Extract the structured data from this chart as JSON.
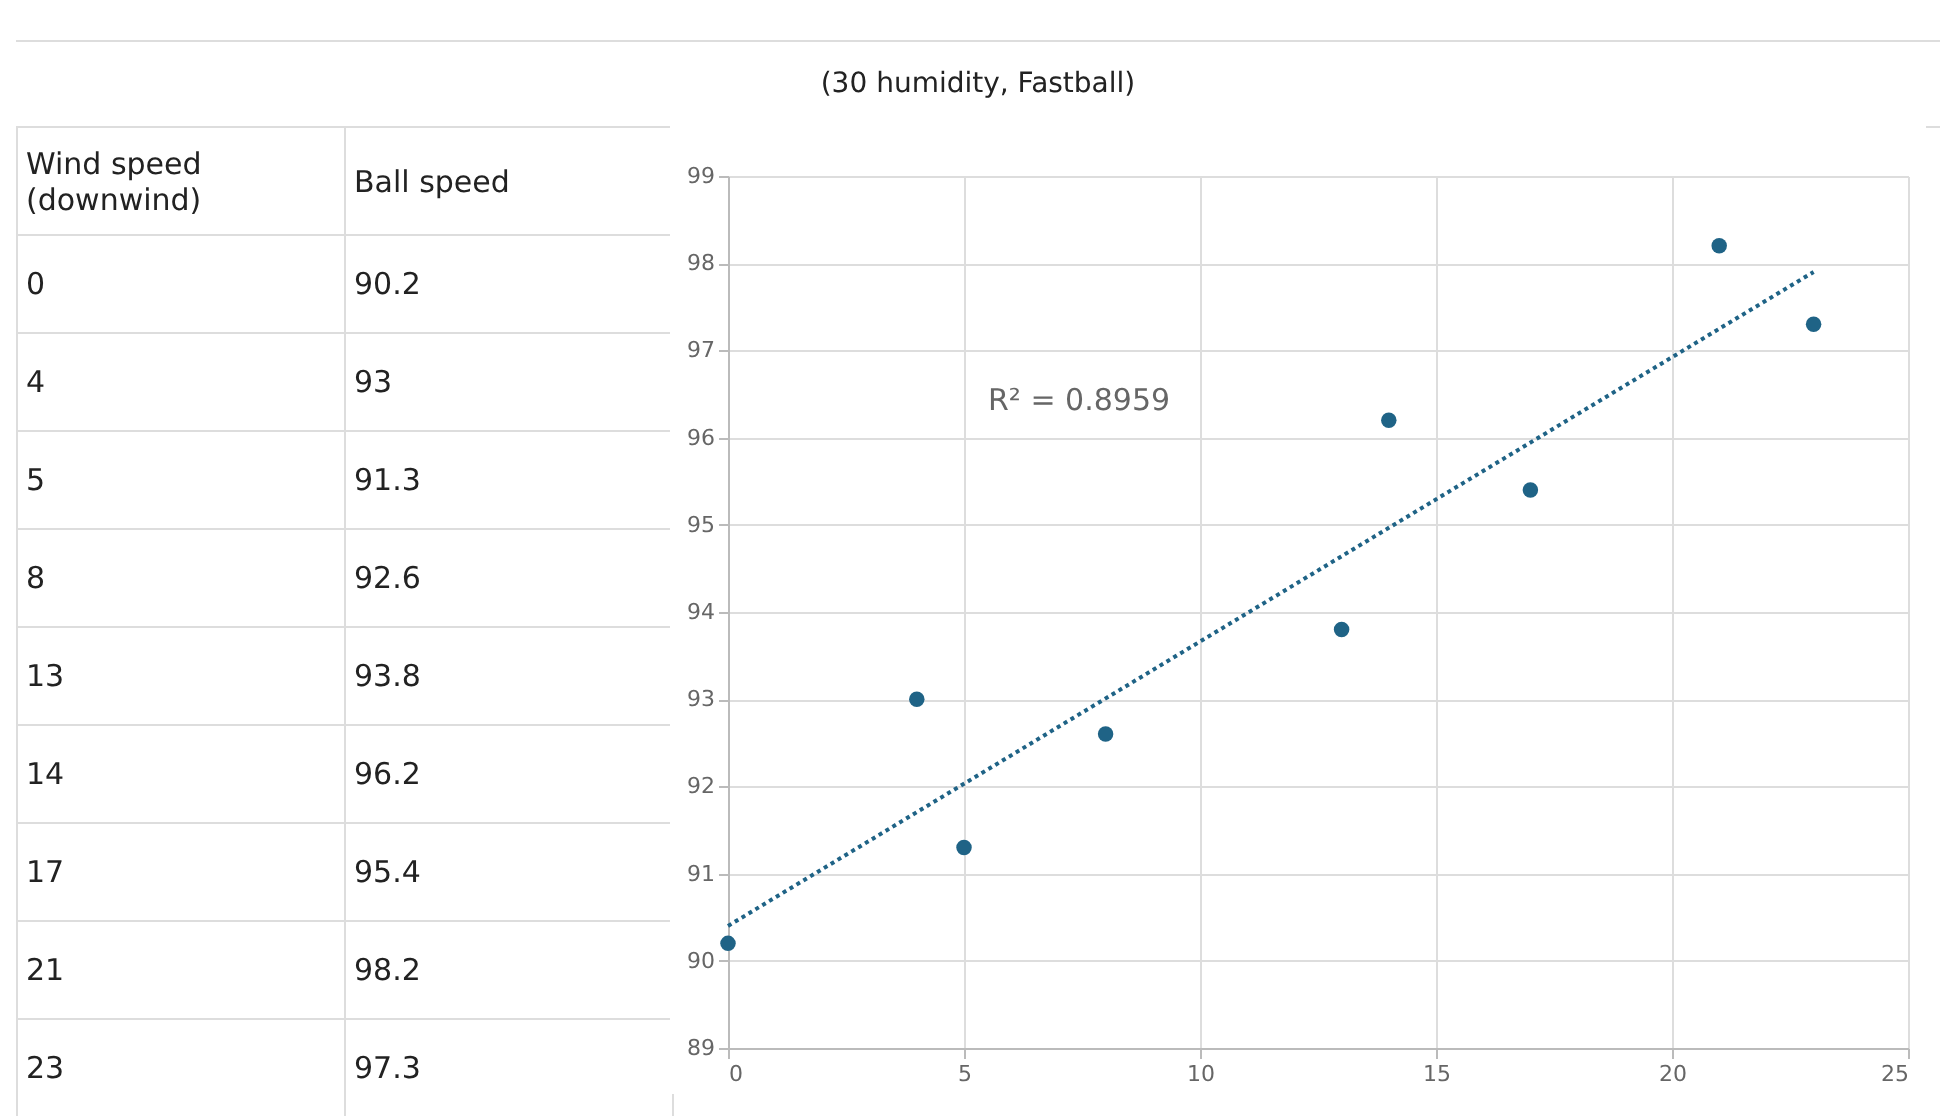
{
  "chart_data": [
    {
      "type": "other",
      "annotations": [
        "Wind speed (downwind)",
        "Ball speed",
        "0",
        "90.2",
        "4",
        "93",
        "5",
        "91.3",
        "8",
        "92.6",
        "13",
        "93.8",
        "14",
        "96.2",
        "17",
        "95.4",
        "21",
        "98.2",
        "23",
        "97.3"
      ]
    },
    {
      "type": "scatter",
      "title": "(30 humidity, Fastball)",
      "x": [
        0,
        4,
        5,
        8,
        13,
        14,
        17,
        21,
        23
      ],
      "series": [
        {
          "type": "scatter",
          "color": "#1f6386",
          "values": [
            90.2,
            93,
            91.3,
            92.6,
            93.8,
            96.2,
            95.4,
            98.2,
            97.3
          ],
          "marker": "circle"
        },
        {
          "type": "line",
          "color": "#1f6386",
          "x": [
            0,
            23
          ],
          "values": [
            90.4,
            97.9
          ],
          "line_style": "dotted"
        }
      ],
      "annotations": [
        "R² = 0.8959"
      ],
      "xlim": [
        0,
        25
      ],
      "xticks": [
        0,
        5,
        10,
        15,
        20,
        25
      ],
      "ylim": [
        89,
        99
      ],
      "yticks": [
        89,
        90,
        91,
        92,
        93,
        94,
        95,
        96,
        97,
        98,
        99
      ],
      "grid": true
    }
  ]
}
